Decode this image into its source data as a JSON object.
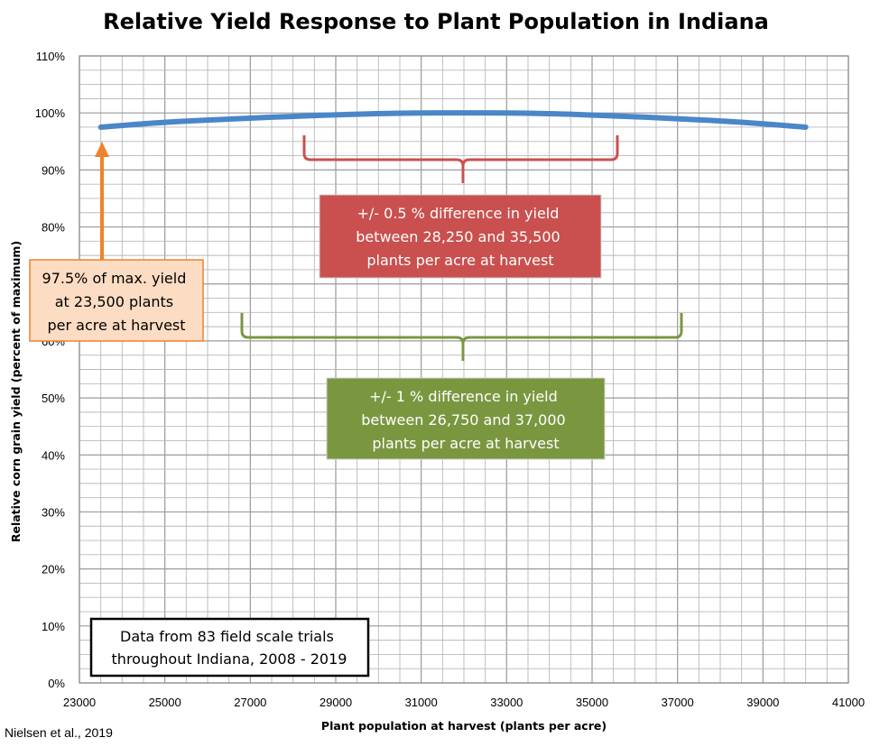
{
  "chart_data": {
    "type": "line",
    "title": "Relative Yield Response to Plant Population in Indiana",
    "xlabel": "Plant population at harvest (plants per acre)",
    "ylabel": "Relative corn grain yield (percent of maximum)",
    "xlim": [
      23000,
      41000
    ],
    "ylim": [
      0,
      110
    ],
    "x_ticks": [
      "23000",
      "25000",
      "27000",
      "29000",
      "31000",
      "33000",
      "35000",
      "37000",
      "39000",
      "41000"
    ],
    "y_ticks": [
      "0%",
      "10%",
      "20%",
      "30%",
      "40%",
      "50%",
      "60%",
      "70%",
      "80%",
      "90%",
      "100%",
      "110%"
    ],
    "grid": true,
    "series": [
      {
        "color": "#4a86c8",
        "x": [
          23500,
          25000,
          26750,
          28250,
          30000,
          31000,
          32000,
          33000,
          34000,
          35500,
          37000,
          38500,
          40000
        ],
        "values": [
          97.5,
          98.4,
          99.0,
          99.5,
          99.9,
          100.0,
          100.0,
          100.0,
          99.9,
          99.5,
          99.0,
          98.4,
          97.5
        ]
      }
    ],
    "annotations": {
      "orange_note": [
        "97.5% of max. yield",
        "at 23,500 plants",
        "per acre at harvest"
      ],
      "red_note": [
        "+/- 0.5 % difference in yield",
        "between 28,250 and 35,500",
        "plants per acre at harvest"
      ],
      "green_note": [
        "+/- 1 % difference in yield",
        "between 26,750 and 37,000",
        "plants per acre at harvest"
      ],
      "data_note": [
        "Data from 83 field scale trials",
        "throughout Indiana, 2008 - 2019"
      ]
    },
    "colors": {
      "orange": "#f0822a",
      "orange_fill": "#fcdcc3",
      "red": "#c9504e",
      "green": "#7a9740",
      "blue": "#4a86c8"
    }
  },
  "source": "Nielsen et al., 2019"
}
